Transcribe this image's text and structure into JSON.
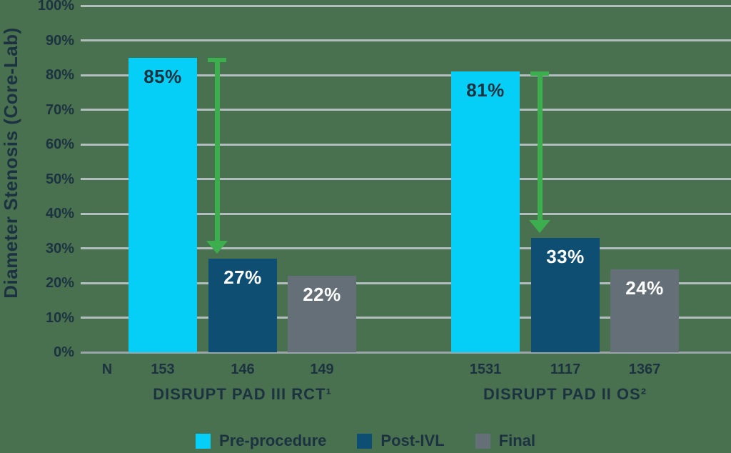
{
  "page": {
    "background": "#497150"
  },
  "chart_data": {
    "type": "bar",
    "ylabel": "Diameter Stenosis (Core-Lab)",
    "ylim": [
      0,
      100
    ],
    "yticks": [
      {
        "value": 0,
        "label": "0%"
      },
      {
        "value": 10,
        "label": "10%"
      },
      {
        "value": 20,
        "label": "20%"
      },
      {
        "value": 30,
        "label": "30%"
      },
      {
        "value": 40,
        "label": "40%"
      },
      {
        "value": 50,
        "label": "50%"
      },
      {
        "value": 60,
        "label": "60%"
      },
      {
        "value": 70,
        "label": "70%"
      },
      {
        "value": 80,
        "label": "80%"
      },
      {
        "value": 90,
        "label": "90%"
      },
      {
        "value": 100,
        "label": "100%"
      }
    ],
    "grid": true,
    "legend_position": "bottom",
    "n_label": "N",
    "categories": [
      "DISRUPT PAD III RCT¹",
      "DISRUPT PAD II OS²"
    ],
    "series": [
      {
        "name": "Pre-procedure",
        "color": "#06cff7",
        "values": [
          85,
          81
        ],
        "labels": [
          "85%",
          "81%"
        ],
        "n": [
          "153",
          "1531"
        ],
        "label_color": "#1c3240"
      },
      {
        "name": "Post-IVL",
        "color": "#0e4e72",
        "values": [
          27,
          33
        ],
        "labels": [
          "27%",
          "33%"
        ],
        "n": [
          "146",
          "1117"
        ],
        "label_color": "#ffffff"
      },
      {
        "name": "Final",
        "color": "#656f77",
        "values": [
          22,
          24
        ],
        "labels": [
          "22%",
          "24%"
        ],
        "n": [
          "149",
          "1367"
        ],
        "label_color": "#ffffff"
      }
    ],
    "annotations": [
      {
        "type": "down-arrow",
        "group_index": 0,
        "from_value": 85,
        "to_value": 27,
        "color": "#3cae4e"
      },
      {
        "type": "down-arrow",
        "group_index": 1,
        "from_value": 81,
        "to_value": 33,
        "color": "#3cae4e"
      }
    ],
    "gridline_color": "#b2bdbd",
    "axis_color": "#9aa4a9",
    "text_color": "#1c3240"
  }
}
